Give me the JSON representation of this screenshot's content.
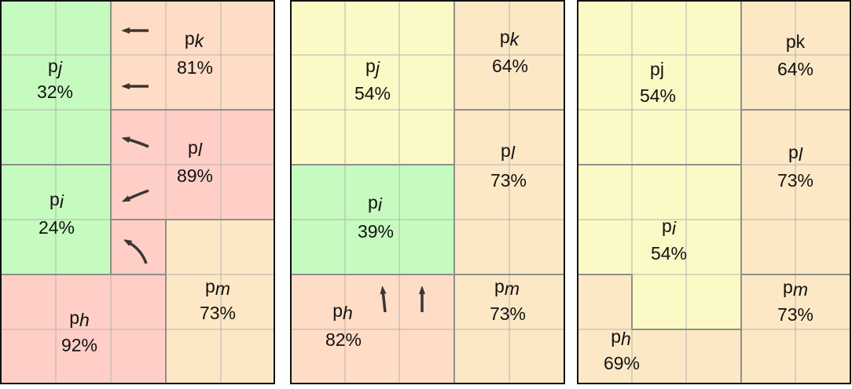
{
  "colors": {
    "green": "#c6fbbf",
    "red": "#ffcfc7",
    "salmon": "#ffdcc6",
    "peach": "#fde8c5",
    "yellow": "#fbfac6",
    "grid": "#b3b3ae",
    "region_border": "#8f8f8a",
    "panel_border": "#111111",
    "arrow": "#3a3535"
  },
  "panels": [
    {
      "regions": [
        {
          "id": "pj",
          "color": "green",
          "label_p": "p",
          "label_sub": "j",
          "pct": "32%"
        },
        {
          "id": "pi",
          "color": "green",
          "label_p": "p",
          "label_sub": "i",
          "pct": "24%"
        },
        {
          "id": "pk",
          "color": "salmon",
          "label_p": "p",
          "label_sub": "k",
          "pct": "81%"
        },
        {
          "id": "pl",
          "color": "red",
          "label_p": "p",
          "label_sub": "l",
          "pct": "89%"
        },
        {
          "id": "pm",
          "color": "peach",
          "label_p": "p",
          "label_sub": "m",
          "pct": "73%"
        },
        {
          "id": "ph",
          "color": "red",
          "label_p": "p",
          "label_sub": "h",
          "pct": "92%"
        }
      ],
      "arrows": [
        "arrow-left",
        "arrow-left",
        "arrow-left-curved-down",
        "arrow-left-curved-up",
        "arrow-up-left-curved"
      ]
    },
    {
      "regions": [
        {
          "id": "pj",
          "color": "yellow",
          "label_p": "p",
          "label_sub": "j",
          "pct": "54%"
        },
        {
          "id": "pk",
          "color": "peach",
          "label_p": "p",
          "label_sub": "k",
          "pct": "64%"
        },
        {
          "id": "pl",
          "color": "peach",
          "label_p": "p",
          "label_sub": "l",
          "pct": "73%"
        },
        {
          "id": "pi",
          "color": "green",
          "label_p": "p",
          "label_sub": "i",
          "pct": "39%"
        },
        {
          "id": "pm",
          "color": "peach",
          "label_p": "p",
          "label_sub": "m",
          "pct": "73%"
        },
        {
          "id": "ph",
          "color": "salmon",
          "label_p": "p",
          "label_sub": "h",
          "pct": "82%"
        }
      ],
      "arrows": [
        "arrow-up",
        "arrow-up"
      ]
    },
    {
      "regions": [
        {
          "id": "pj",
          "color": "yellow",
          "label_p": "pj",
          "label_sub": "",
          "pct": "54%"
        },
        {
          "id": "pk",
          "color": "peach",
          "label_p": "pk",
          "label_sub": "",
          "pct": "64%"
        },
        {
          "id": "pl",
          "color": "peach",
          "label_p": "p",
          "label_sub": "l",
          "pct": "73%"
        },
        {
          "id": "pi",
          "color": "yellow",
          "label_p": "p",
          "label_sub": "i",
          "pct": "54%"
        },
        {
          "id": "pm",
          "color": "peach",
          "label_p": "p",
          "label_sub": "m",
          "pct": "73%"
        },
        {
          "id": "ph",
          "color": "peach",
          "label_p": "p",
          "label_sub": "h",
          "pct": "69%"
        }
      ],
      "arrows": []
    }
  ]
}
